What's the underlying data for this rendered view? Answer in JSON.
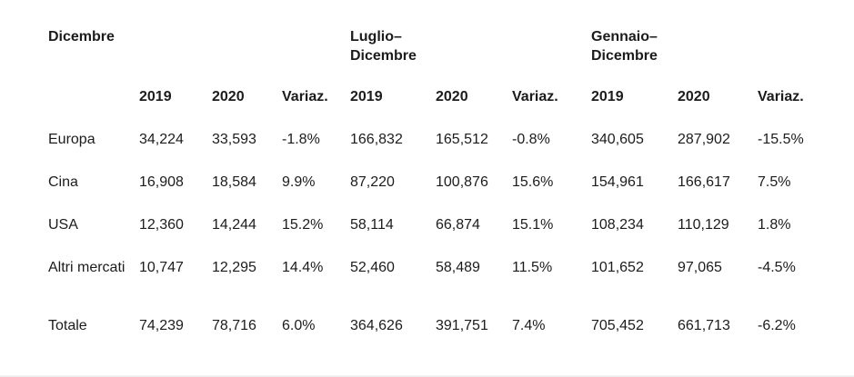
{
  "page": {
    "background": "#ffffff",
    "text_color": "#1c1c1c",
    "bottom_border_color": "#eef0f2"
  },
  "table": {
    "groups": [
      {
        "line1": "Dicembre",
        "line2": ""
      },
      {
        "line1": "Luglio–",
        "line2": "Dicembre"
      },
      {
        "line1": "Gennaio–",
        "line2": "Dicembre"
      }
    ],
    "col_headers": [
      "2019",
      "2020",
      "Variaz.",
      "2019",
      "2020",
      "Variaz.",
      "2019",
      "2020",
      "Variaz."
    ],
    "rows": [
      {
        "label": "Europa",
        "values": [
          "34,224",
          "33,593",
          "-1.8%",
          "166,832",
          "165,512",
          "-0.8%",
          "340,605",
          "287,902",
          "-15.5%"
        ]
      },
      {
        "label": "Cina",
        "values": [
          "16,908",
          "18,584",
          "9.9%",
          "87,220",
          "100,876",
          "15.6%",
          "154,961",
          "166,617",
          "7.5%"
        ]
      },
      {
        "label": "USA",
        "values": [
          "12,360",
          "14,244",
          "15.2%",
          "58,114",
          "66,874",
          "15.1%",
          "108,234",
          "110,129",
          "1.8%"
        ]
      },
      {
        "label": "Altri mercati",
        "values": [
          "10,747",
          "12,295",
          "14.4%",
          "52,460",
          "58,489",
          "11.5%",
          "101,652",
          "97,065",
          "-4.5%"
        ]
      },
      {
        "label": "Totale",
        "values": [
          "74,239",
          "78,716",
          "6.0%",
          "364,626",
          "391,751",
          "7.4%",
          "705,452",
          "661,713",
          "-6.2%"
        ]
      }
    ]
  }
}
